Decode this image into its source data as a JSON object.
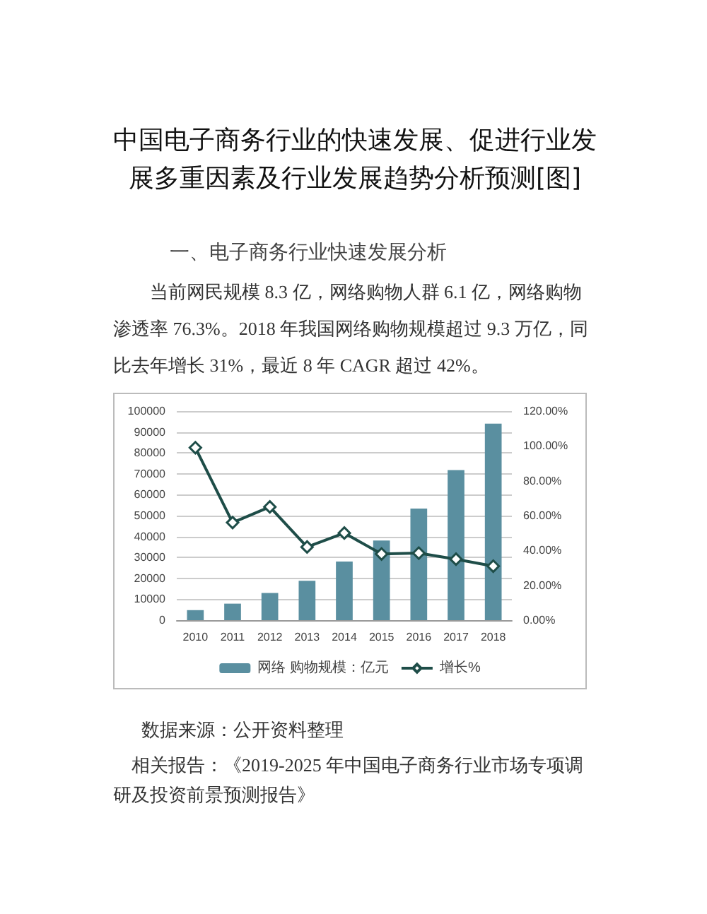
{
  "chart_data": {
    "type": "bar",
    "title": "中国电子商务行业的快速发展、促进行业发展多重因素及行业发展趋势分析预测[图]",
    "subtitle": "一、电子商务行业快速发展分析",
    "annotations": [
      "当前网民规模 8.3 亿，网络购物人群 6.1 亿，网络购物渗透率 76.3%。2018 年我国网络购物规模超过 9.3 万亿，同比去年增长 31%，最近 8 年 CAGR 超过 42%。",
      "数据来源：公开资料整理",
      "相关报告：《2019-2025 年中国电子商务行业市场专项调研及投资前景预测报告》"
    ],
    "categories": [
      "2010",
      "2011",
      "2012",
      "2013",
      "2014",
      "2015",
      "2016",
      "2017",
      "2018"
    ],
    "series": [
      {
        "name": "网络 购物规模：亿元",
        "color": "#5a8fa0",
        "values": [
          4800,
          7900,
          13000,
          18800,
          28000,
          38100,
          53400,
          71800,
          94000
        ]
      },
      {
        "name": "增长%",
        "type": "line",
        "axis": "y2",
        "color": "#1e4d48",
        "values": [
          99,
          56,
          65,
          42,
          50,
          38,
          38.5,
          35,
          31
        ]
      }
    ],
    "ylim": [
      0,
      100000
    ],
    "yticks": [
      0,
      10000,
      20000,
      30000,
      40000,
      50000,
      60000,
      70000,
      80000,
      90000,
      100000
    ],
    "y2lim": [
      0,
      120
    ],
    "y2ticks": [
      {
        "value": 0,
        "label": "0.00%"
      },
      {
        "value": 20,
        "label": "20.00%"
      },
      {
        "value": 40,
        "label": "40.00%"
      },
      {
        "value": 60,
        "label": "60.00%"
      },
      {
        "value": 80,
        "label": "80.00%"
      },
      {
        "value": 100,
        "label": "100.00%"
      },
      {
        "value": 120,
        "label": "120.00%"
      }
    ],
    "grid": "y",
    "legend": "bottom",
    "marker": "diamond"
  }
}
